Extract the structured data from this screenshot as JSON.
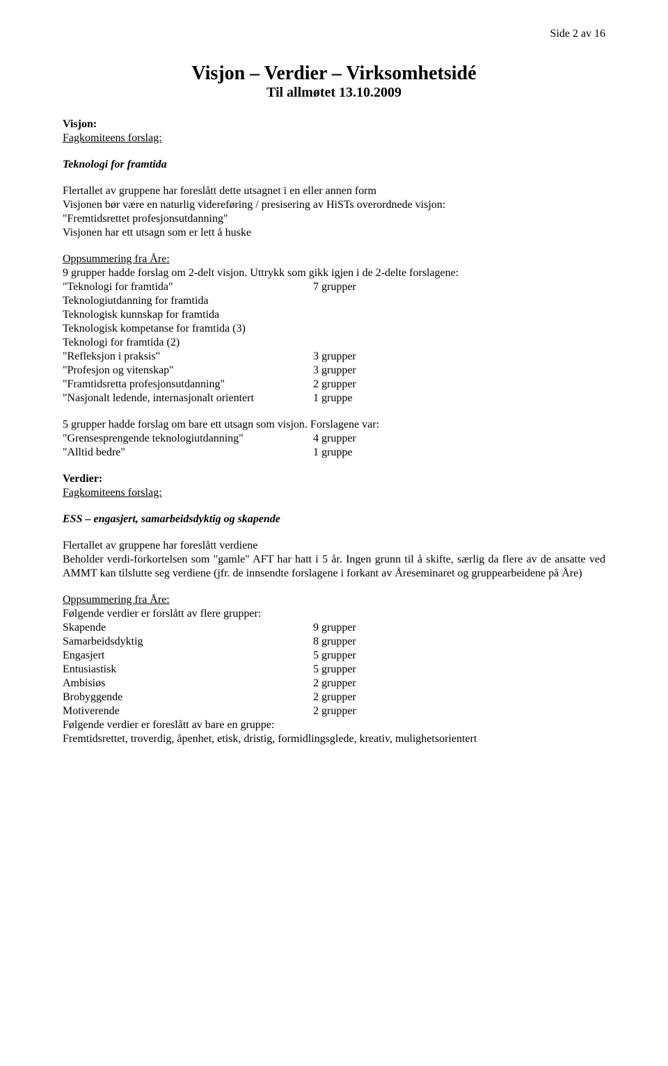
{
  "page_number": "Side 2 av 16",
  "title": "Visjon – Verdier – Virksomhetsidé",
  "subtitle": "Til allmøtet 13.10.2009",
  "visjon": {
    "heading": "Visjon:",
    "subhead": "Fagkomiteens forslag:",
    "proposal": "Teknologi for framtida",
    "para1_line1": "Flertallet av gruppene har foreslått dette utsagnet i en eller annen form",
    "para1_line2": "Visjonen bør være en naturlig videreføring / presisering av HiSTs overordnede visjon:",
    "para1_line3": "\"Fremtidsrettet profesjonsutdanning\"",
    "para1_line4": "Visjonen har ett utsagn som er lett å huske",
    "summary_head": "Oppsummering fra Åre:",
    "summary_intro": "9 grupper hadde forslag om 2-delt visjon. Uttrykk som gikk igjen i de 2-delte forslagene:",
    "items": [
      {
        "label": "\"Teknologi for framtida\"",
        "value": "7 grupper",
        "indent": false
      },
      {
        "label": "Teknologiutdanning for framtida",
        "value": "",
        "indent": true
      },
      {
        "label": "Teknologisk kunnskap for framtida",
        "value": "",
        "indent": true
      },
      {
        "label": "Teknologisk kompetanse for framtida (3)",
        "value": "",
        "indent": true
      },
      {
        "label": "Teknologi for framtida (2)",
        "value": "",
        "indent": true
      },
      {
        "label": "\"Refleksjon i praksis\"",
        "value": "3 grupper",
        "indent": false
      },
      {
        "label": "\"Profesjon og vitenskap\"",
        "value": "3 grupper",
        "indent": false
      },
      {
        "label": "\"Framtidsretta profesjonsutdanning\"",
        "value": "2 grupper",
        "indent": false
      },
      {
        "label": "\"Nasjonalt ledende, internasjonalt orientert",
        "value": "1 gruppe",
        "indent": false
      }
    ],
    "five_intro": "5 grupper hadde forslag om bare ett utsagn som visjon. Forslagene var:",
    "five_items": [
      {
        "label": "\"Grensesprengende teknologiutdanning\"",
        "value": "4 grupper"
      },
      {
        "label": "\"Alltid bedre\"",
        "value": "1 gruppe"
      }
    ]
  },
  "verdier": {
    "heading": "Verdier:",
    "subhead": "Fagkomiteens forslag:",
    "proposal": "ESS – engasjert, samarbeidsdyktig og skapende",
    "para1": "Flertallet av gruppene har foreslått verdiene",
    "para2": "Beholder verdi-forkortelsen som \"gamle\" AFT har hatt i 5 år. Ingen grunn til å skifte, særlig da flere av de ansatte ved AMMT kan tilslutte seg verdiene (jfr. de innsendte forslagene i forkant av Åreseminaret og gruppearbeidene på Åre)",
    "summary_head": "Oppsummering fra Åre:",
    "multi_head": "Følgende verdier er forslått av flere grupper:",
    "multi_items": [
      {
        "label": "Skapende",
        "value": "9 grupper"
      },
      {
        "label": "Samarbeidsdyktig",
        "value": "8 grupper"
      },
      {
        "label": "Engasjert",
        "value": "5 grupper"
      },
      {
        "label": "Entusiastisk",
        "value": "5 grupper"
      },
      {
        "label": "Ambisiøs",
        "value": "2 grupper"
      },
      {
        "label": "Brobyggende",
        "value": "2 grupper"
      },
      {
        "label": "Motiverende",
        "value": "2 grupper"
      }
    ],
    "single_head": "Følgende verdier er foreslått av bare en gruppe:",
    "single_line": "Fremtidsrettet, troverdig, åpenhet, etisk, dristig, formidlingsglede, kreativ, mulighetsorientert"
  }
}
